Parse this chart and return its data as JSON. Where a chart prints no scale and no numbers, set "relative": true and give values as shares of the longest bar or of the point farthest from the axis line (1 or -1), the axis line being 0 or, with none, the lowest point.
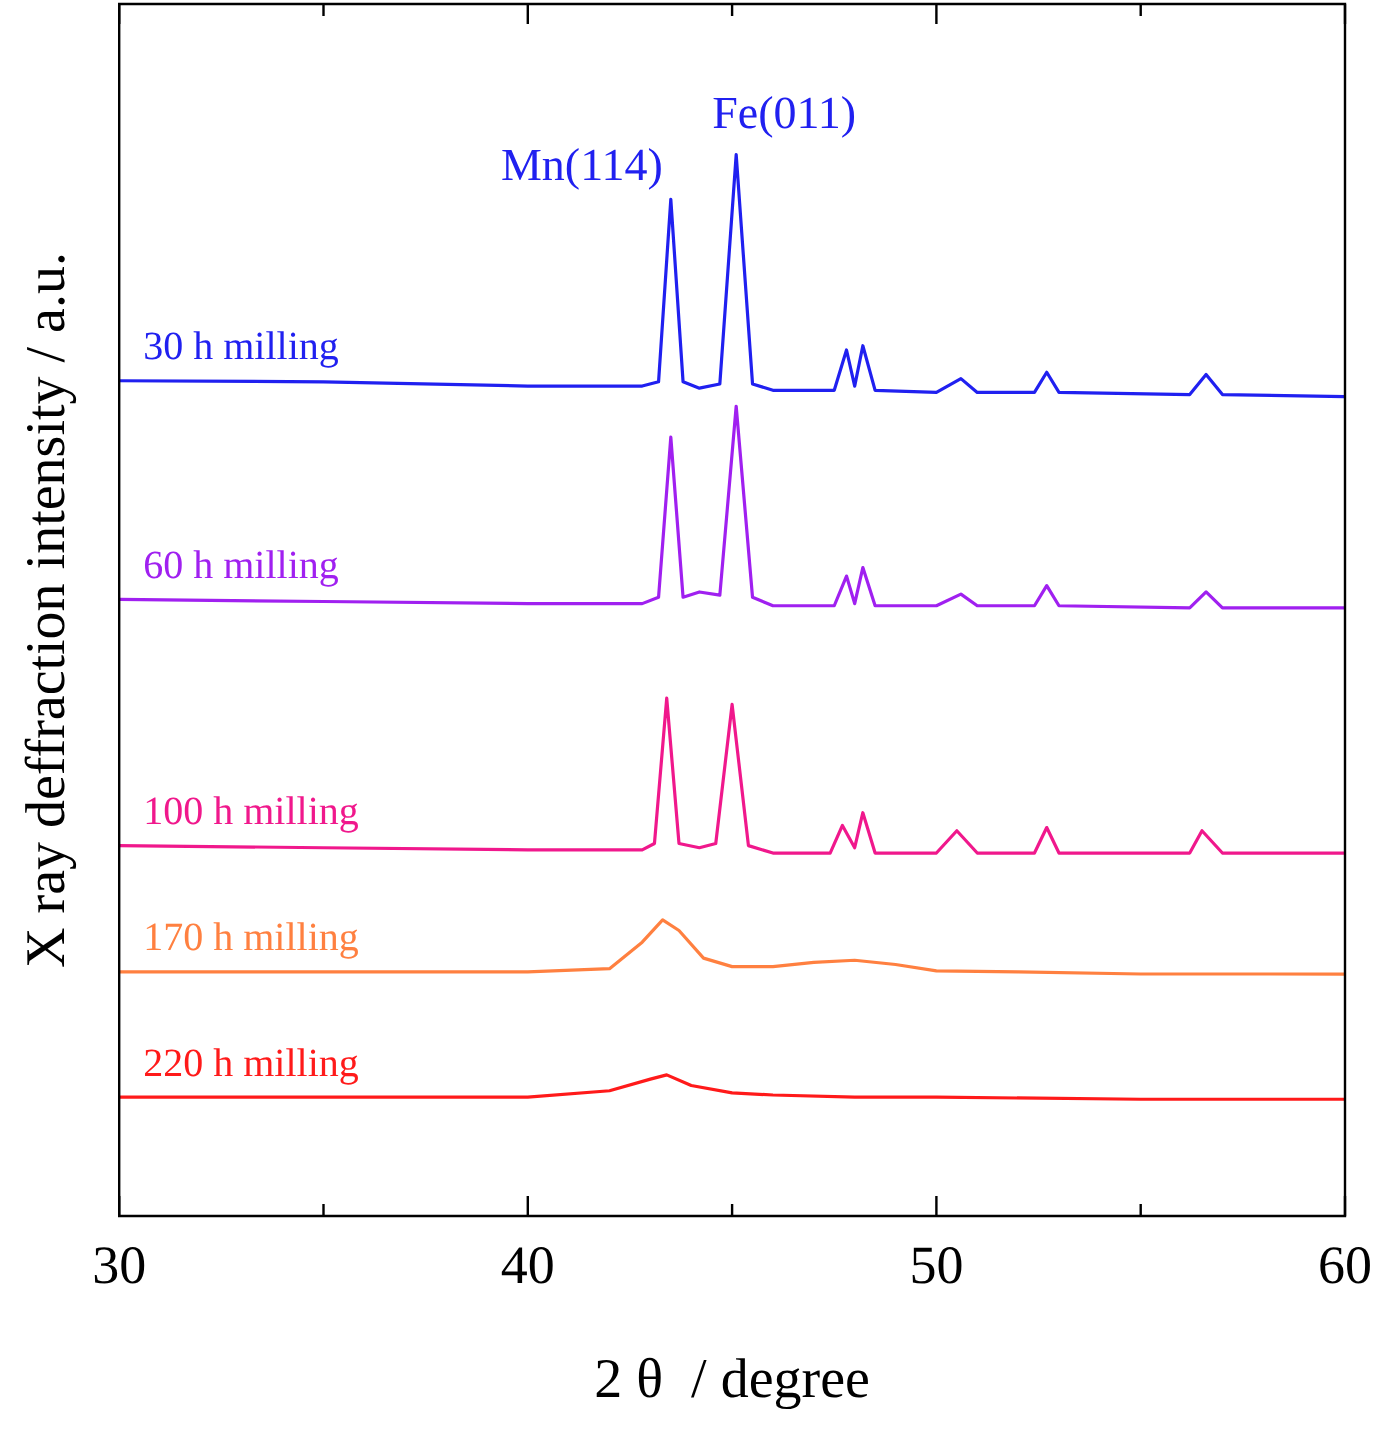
{
  "chart_data": {
    "type": "line",
    "relative": true,
    "xlabel": "2 θ  / degree",
    "ylabel": "X ray deffraction intensity / a.u.",
    "xlim": [
      30,
      60
    ],
    "xticks": [
      30,
      {
        "value": 35,
        "label": null
      },
      40,
      {
        "value": 45,
        "label": null
      },
      50,
      {
        "value": 55,
        "label": null
      },
      60
    ],
    "grid": false,
    "legend": false,
    "marker": "none",
    "line_style": "solid",
    "annotations": [
      {
        "text": "Mn(114)",
        "x": 43.5,
        "y": 0.958
      },
      {
        "text": "Fe(011)",
        "x": 45.1,
        "y": 1.0
      }
    ],
    "series": [
      {
        "name": "30 h milling",
        "color": "#2020f0",
        "x": [
          30,
          35,
          40,
          42.8,
          43.2,
          43.5,
          43.8,
          44.2,
          44.7,
          45.1,
          45.5,
          46,
          47.5,
          47.8,
          48.0,
          48.2,
          48.5,
          50,
          50.6,
          51,
          52.4,
          52.7,
          53,
          56.2,
          56.6,
          57,
          60
        ],
        "values": [
          0.787,
          0.786,
          0.782,
          0.782,
          0.786,
          0.958,
          0.786,
          0.78,
          0.784,
          1.0,
          0.784,
          0.778,
          0.778,
          0.816,
          0.782,
          0.82,
          0.778,
          0.776,
          0.789,
          0.776,
          0.776,
          0.795,
          0.776,
          0.774,
          0.793,
          0.774,
          0.772
        ]
      },
      {
        "name": "60 h milling",
        "color": "#a020f0",
        "x": [
          30,
          35,
          40,
          42.8,
          43.2,
          43.5,
          43.8,
          44.2,
          44.7,
          45.1,
          45.5,
          46,
          47.5,
          47.8,
          48.0,
          48.2,
          48.5,
          50,
          50.6,
          51,
          52.4,
          52.7,
          53,
          56.2,
          56.6,
          57,
          60
        ],
        "values": [
          0.581,
          0.579,
          0.577,
          0.577,
          0.583,
          0.734,
          0.583,
          0.588,
          0.585,
          0.763,
          0.583,
          0.575,
          0.575,
          0.603,
          0.577,
          0.611,
          0.575,
          0.575,
          0.586,
          0.575,
          0.575,
          0.594,
          0.575,
          0.573,
          0.588,
          0.573,
          0.573
        ]
      },
      {
        "name": "100 h milling",
        "color": "#f0188c",
        "x": [
          30,
          35,
          40,
          42.8,
          43.1,
          43.4,
          43.7,
          44.2,
          44.6,
          45.0,
          45.4,
          46,
          47.4,
          47.7,
          48.0,
          48.2,
          48.5,
          50,
          50.5,
          51,
          52.4,
          52.7,
          53,
          56.2,
          56.5,
          57,
          60
        ],
        "values": [
          0.349,
          0.347,
          0.345,
          0.345,
          0.351,
          0.488,
          0.351,
          0.347,
          0.351,
          0.482,
          0.349,
          0.342,
          0.342,
          0.368,
          0.347,
          0.38,
          0.342,
          0.342,
          0.363,
          0.342,
          0.342,
          0.366,
          0.342,
          0.342,
          0.363,
          0.342,
          0.342
        ]
      },
      {
        "name": "170 h milling",
        "color": "#ff8040",
        "x": [
          30,
          35,
          40,
          42,
          42.8,
          43.3,
          43.7,
          44.3,
          45,
          46,
          47,
          48,
          49,
          50,
          52,
          55,
          60
        ],
        "values": [
          0.23,
          0.23,
          0.23,
          0.233,
          0.258,
          0.279,
          0.269,
          0.243,
          0.235,
          0.235,
          0.239,
          0.241,
          0.237,
          0.231,
          0.23,
          0.228,
          0.228
        ]
      },
      {
        "name": "220 h milling",
        "color": "#ff1a1a",
        "x": [
          30,
          35,
          40,
          42,
          43,
          43.4,
          44,
          45,
          46,
          48,
          50,
          55,
          60
        ],
        "values": [
          0.112,
          0.112,
          0.112,
          0.118,
          0.129,
          0.133,
          0.123,
          0.116,
          0.114,
          0.112,
          0.112,
          0.11,
          0.11
        ]
      }
    ]
  }
}
